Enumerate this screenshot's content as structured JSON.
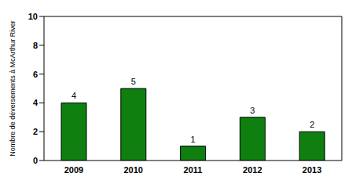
{
  "chart_data": {
    "type": "bar",
    "y_label": "Nombre de déversements à McArthur River",
    "categories": [
      "2009",
      "2010",
      "2011",
      "2012",
      "2013"
    ],
    "values": [
      4,
      5,
      1,
      3,
      2
    ],
    "color": "#0f800f",
    "ylim": [
      0,
      10
    ],
    "yticks": [
      0,
      2,
      4,
      6,
      8,
      10
    ],
    "grid": false,
    "data_labels": true
  }
}
